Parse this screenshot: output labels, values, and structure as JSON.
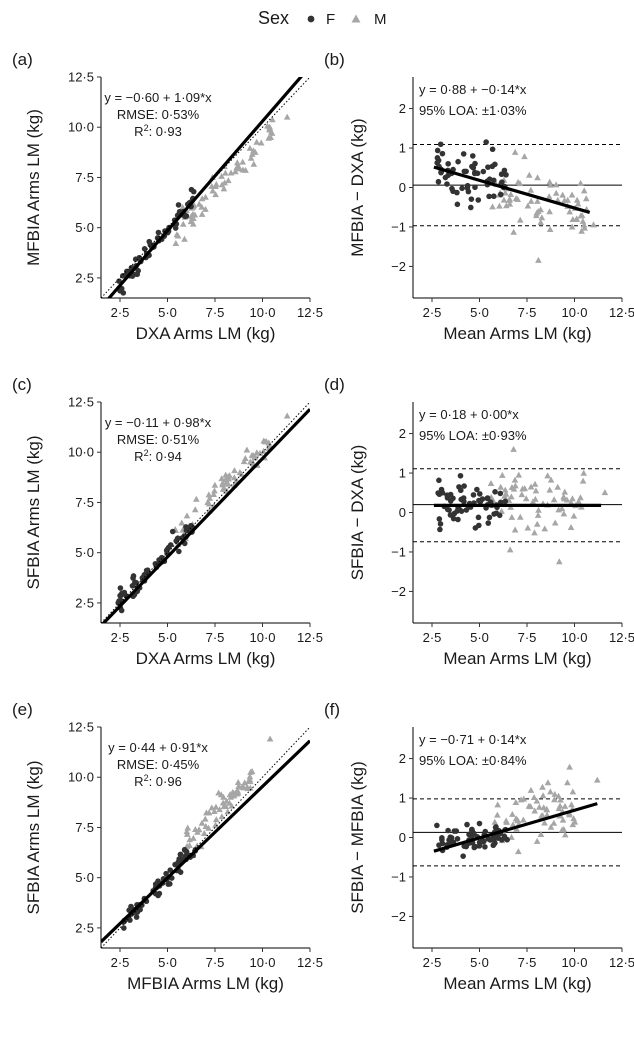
{
  "legend": {
    "title": "Sex",
    "items": [
      {
        "label": "F",
        "color": "#333333",
        "shape": "circle"
      },
      {
        "label": "M",
        "color": "#a6a6a6",
        "shape": "triangle"
      }
    ],
    "position": "top-center"
  },
  "chart_data": [
    {
      "panel": "(a)",
      "type": "scatter",
      "xlabel": "DXA Arms LM (kg)",
      "ylabel": "MFBIA Arms LM (kg)",
      "xlim": [
        1.5,
        12.5
      ],
      "ylim": [
        1.5,
        12.5
      ],
      "xticks": [
        "2·5",
        "5·0",
        "7·5",
        "10·0",
        "12·5"
      ],
      "yticks": [
        "2·5",
        "5·0",
        "7·5",
        "10·0",
        "12·5"
      ],
      "annotations": [
        "y = −0·60 + 1·09*x",
        "RMSE: 0·53%",
        "R²: 0·93"
      ],
      "fit_line": {
        "intercept": -0.6,
        "slope": 1.09
      },
      "identity_line": true,
      "clusters": {
        "F": {
          "x": [
            2.4,
            6.4
          ],
          "y_intercept": -0.6,
          "slope": 1.09,
          "sd": 0.25
        },
        "M": {
          "x": [
            5.4,
            10.6
          ],
          "y_intercept": -0.6,
          "slope": 1.0,
          "sd": 0.35
        }
      },
      "extra_points": [
        {
          "sex": "M",
          "x": 11.3,
          "y": 10.5
        }
      ]
    },
    {
      "panel": "(b)",
      "type": "scatter",
      "xlabel": "Mean Arms LM (kg)",
      "ylabel": "MFBIA − DXA (kg)",
      "xlim": [
        1.5,
        12.5
      ],
      "ylim": [
        -2.8,
        2.8
      ],
      "xticks": [
        "2·5",
        "5·0",
        "7·5",
        "10·0",
        "12·5"
      ],
      "yticks": [
        "−2",
        "−1",
        "0",
        "1",
        "2"
      ],
      "annotations": [
        "y = 0·88 + −0·14*x",
        "95% LOA: ±1·03%"
      ],
      "fit_line": {
        "intercept": 0.88,
        "slope": -0.14,
        "x_range": [
          2.6,
          10.8
        ]
      },
      "zero_line": 0.06,
      "loa": [
        1.09,
        -0.97
      ],
      "clusters": {
        "F": {
          "x": [
            2.7,
            6.4
          ],
          "mean": 0.3,
          "slope": -0.05,
          "sd": 0.3
        },
        "M": {
          "x": [
            5.6,
            10.8
          ],
          "mean": -0.3,
          "slope": -0.12,
          "sd": 0.38
        }
      },
      "extra_points": [
        {
          "sex": "M",
          "x": 8.1,
          "y": -1.85
        },
        {
          "sex": "M",
          "x": 11.0,
          "y": -0.95
        }
      ]
    },
    {
      "panel": "(c)",
      "type": "scatter",
      "xlabel": "DXA Arms LM (kg)",
      "ylabel": "SFBIA Arms LM (kg)",
      "xlim": [
        1.5,
        12.5
      ],
      "ylim": [
        1.5,
        12.5
      ],
      "xticks": [
        "2·5",
        "5·0",
        "7·5",
        "10·0",
        "12·5"
      ],
      "yticks": [
        "2·5",
        "5·0",
        "7·5",
        "10·0",
        "12·5"
      ],
      "annotations": [
        "y = −0·11 + 0·98*x",
        "RMSE: 0·51%",
        "R²: 0·94"
      ],
      "fit_line": {
        "intercept": -0.11,
        "slope": 0.98
      },
      "identity_line": true,
      "clusters": {
        "F": {
          "x": [
            2.4,
            6.4
          ],
          "y_intercept": 0.1,
          "slope": 1.0,
          "sd": 0.25
        },
        "M": {
          "x": [
            5.4,
            10.4
          ],
          "y_intercept": 0.3,
          "slope": 1.0,
          "sd": 0.45
        }
      },
      "extra_points": [
        {
          "sex": "M",
          "x": 11.3,
          "y": 11.8
        }
      ]
    },
    {
      "panel": "(d)",
      "type": "scatter",
      "xlabel": "Mean Arms LM (kg)",
      "ylabel": "SFBIA − DXA (kg)",
      "xlim": [
        1.5,
        12.5
      ],
      "ylim": [
        -2.8,
        2.8
      ],
      "xticks": [
        "2·5",
        "5·0",
        "7·5",
        "10·0",
        "12·5"
      ],
      "yticks": [
        "−2",
        "−1",
        "0",
        "1",
        "2"
      ],
      "annotations": [
        "y = 0·18 + 0·00*x",
        "95% LOA: ±0·93%"
      ],
      "fit_line": {
        "intercept": 0.18,
        "slope": 0.0,
        "x_range": [
          2.6,
          11.4
        ]
      },
      "zero_line": 0.2,
      "loa": [
        1.11,
        -0.74
      ],
      "clusters": {
        "F": {
          "x": [
            2.7,
            6.4
          ],
          "mean": 0.18,
          "slope": 0.0,
          "sd": 0.28
        },
        "M": {
          "x": [
            5.6,
            10.8
          ],
          "mean": 0.28,
          "slope": 0.0,
          "sd": 0.45
        }
      },
      "extra_points": [
        {
          "sex": "M",
          "x": 11.6,
          "y": 0.5
        },
        {
          "sex": "M",
          "x": 9.2,
          "y": -1.25
        }
      ]
    },
    {
      "panel": "(e)",
      "type": "scatter",
      "xlabel": "MFBIA Arms LM (kg)",
      "ylabel": "SFBIA Arms LM (kg)",
      "xlim": [
        1.5,
        12.5
      ],
      "ylim": [
        1.5,
        12.5
      ],
      "xticks": [
        "2·5",
        "5·0",
        "7·5",
        "10·0",
        "12·5"
      ],
      "yticks": [
        "2·5",
        "5·0",
        "7·5",
        "10·0",
        "12·5"
      ],
      "annotations": [
        "y = 0·44 + 0·91*x",
        "RMSE: 0·45%",
        "R²: 0·96"
      ],
      "fit_line": {
        "intercept": 0.44,
        "slope": 0.91
      },
      "identity_line": true,
      "clusters": {
        "F": {
          "x": [
            2.6,
            6.6
          ],
          "y_intercept": 0.2,
          "slope": 0.97,
          "sd": 0.2
        },
        "M": {
          "x": [
            5.8,
            9.6
          ],
          "y_intercept": 0.4,
          "slope": 1.02,
          "sd": 0.35
        }
      },
      "extra_points": [
        {
          "sex": "M",
          "x": 10.4,
          "y": 11.9
        }
      ]
    },
    {
      "panel": "(f)",
      "type": "scatter",
      "xlabel": "Mean Arms LM (kg)",
      "ylabel": "SFBIA − MFBIA (kg)",
      "xlim": [
        1.5,
        12.5
      ],
      "ylim": [
        -2.8,
        2.8
      ],
      "xticks": [
        "2·5",
        "5·0",
        "7·5",
        "10·0",
        "12·5"
      ],
      "yticks": [
        "−2",
        "−1",
        "0",
        "1",
        "2"
      ],
      "annotations": [
        "y = −0·71 + 0·14*x",
        "95% LOA: ±0·84%"
      ],
      "fit_line": {
        "intercept": -0.71,
        "slope": 0.14,
        "x_range": [
          2.6,
          11.2
        ]
      },
      "zero_line": 0.13,
      "loa": [
        0.98,
        -0.72
      ],
      "clusters": {
        "F": {
          "x": [
            2.7,
            6.6
          ],
          "mean": 0.0,
          "slope": 0.05,
          "sd": 0.18
        },
        "M": {
          "x": [
            5.8,
            10.2
          ],
          "mean": 0.55,
          "slope": 0.12,
          "sd": 0.35
        }
      },
      "extra_points": [
        {
          "sex": "M",
          "x": 11.2,
          "y": 1.45
        }
      ]
    }
  ]
}
